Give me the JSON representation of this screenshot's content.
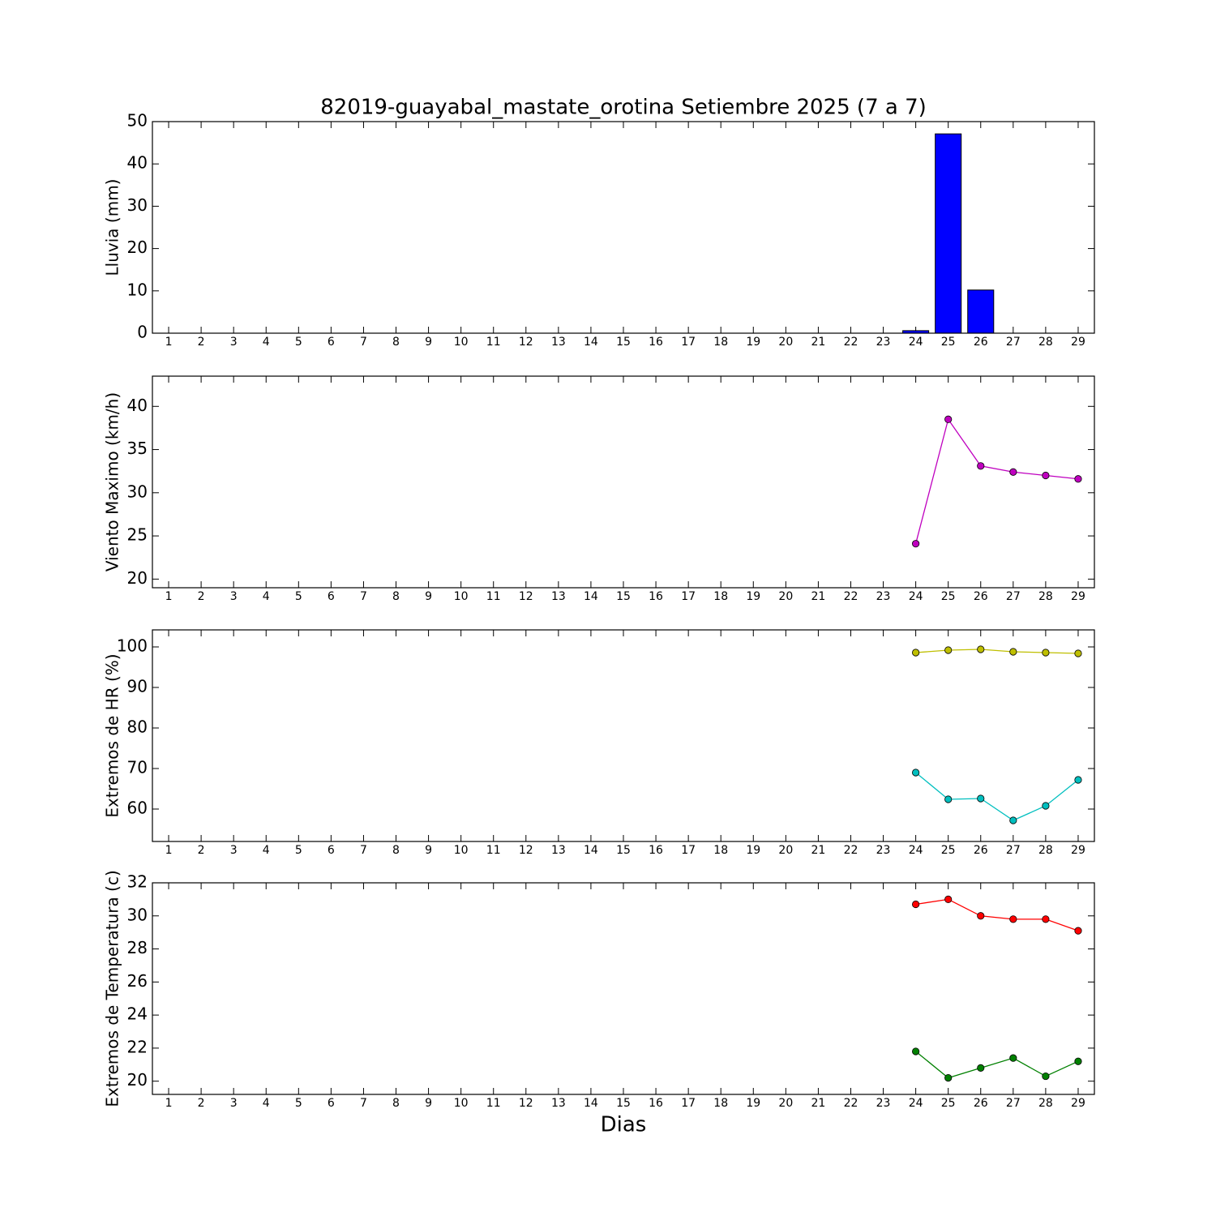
{
  "chart_data": [
    {
      "type": "bar",
      "title": "82019-guayabal_mastate_orotina Setiembre 2025  (7 a 7)",
      "ylabel": "Lluvia (mm)",
      "x": [
        24,
        25,
        26,
        27,
        28,
        29
      ],
      "series": [
        {
          "color": "#0000ff",
          "values": [
            0.6,
            47.1,
            10.2,
            0,
            0,
            0
          ]
        }
      ],
      "xlim": [
        0.5,
        29.5
      ],
      "xticks": [
        1,
        2,
        3,
        4,
        5,
        6,
        7,
        8,
        9,
        10,
        11,
        12,
        13,
        14,
        15,
        16,
        17,
        18,
        19,
        20,
        21,
        22,
        23,
        24,
        25,
        26,
        27,
        28,
        29
      ],
      "ylim": [
        0,
        50
      ],
      "yticks": [
        0,
        10,
        20,
        30,
        40,
        50
      ]
    },
    {
      "type": "line",
      "ylabel": "Viento Maximo (km/h)",
      "x": [
        24,
        25,
        26,
        27,
        28,
        29
      ],
      "series": [
        {
          "color": "#bf00bf",
          "values": [
            24.1,
            38.5,
            33.1,
            32.4,
            32.0,
            31.6
          ]
        }
      ],
      "xlim": [
        0.5,
        29.5
      ],
      "xticks": [
        1,
        2,
        3,
        4,
        5,
        6,
        7,
        8,
        9,
        10,
        11,
        12,
        13,
        14,
        15,
        16,
        17,
        18,
        19,
        20,
        21,
        22,
        23,
        24,
        25,
        26,
        27,
        28,
        29
      ],
      "ylim": [
        19,
        43.5
      ],
      "yticks": [
        20,
        25,
        30,
        35,
        40
      ]
    },
    {
      "type": "line",
      "ylabel": "Extremos de HR (%)",
      "x": [
        24,
        25,
        26,
        27,
        28,
        29
      ],
      "series": [
        {
          "color": "#bfbf00",
          "values": [
            98.6,
            99.2,
            99.4,
            98.8,
            98.6,
            98.4
          ]
        },
        {
          "color": "#00bfbf",
          "values": [
            69.0,
            62.4,
            62.6,
            57.2,
            60.8,
            67.2
          ]
        }
      ],
      "xlim": [
        0.5,
        29.5
      ],
      "xticks": [
        1,
        2,
        3,
        4,
        5,
        6,
        7,
        8,
        9,
        10,
        11,
        12,
        13,
        14,
        15,
        16,
        17,
        18,
        19,
        20,
        21,
        22,
        23,
        24,
        25,
        26,
        27,
        28,
        29
      ],
      "ylim": [
        52,
        104.2
      ],
      "yticks": [
        60,
        70,
        80,
        90,
        100
      ]
    },
    {
      "type": "line",
      "ylabel": "Extremos de Temperatura (c)",
      "xlabel": "Dias",
      "x": [
        24,
        25,
        26,
        27,
        28,
        29
      ],
      "series": [
        {
          "color": "#ff0000",
          "values": [
            30.7,
            31.0,
            30.0,
            29.8,
            29.8,
            29.1
          ]
        },
        {
          "color": "#008000",
          "values": [
            21.8,
            20.2,
            20.8,
            21.4,
            20.3,
            21.2
          ]
        }
      ],
      "xlim": [
        0.5,
        29.5
      ],
      "xticks": [
        1,
        2,
        3,
        4,
        5,
        6,
        7,
        8,
        9,
        10,
        11,
        12,
        13,
        14,
        15,
        16,
        17,
        18,
        19,
        20,
        21,
        22,
        23,
        24,
        25,
        26,
        27,
        28,
        29
      ],
      "ylim": [
        19.2,
        32
      ],
      "yticks": [
        20,
        22,
        24,
        26,
        28,
        30,
        32
      ]
    }
  ]
}
